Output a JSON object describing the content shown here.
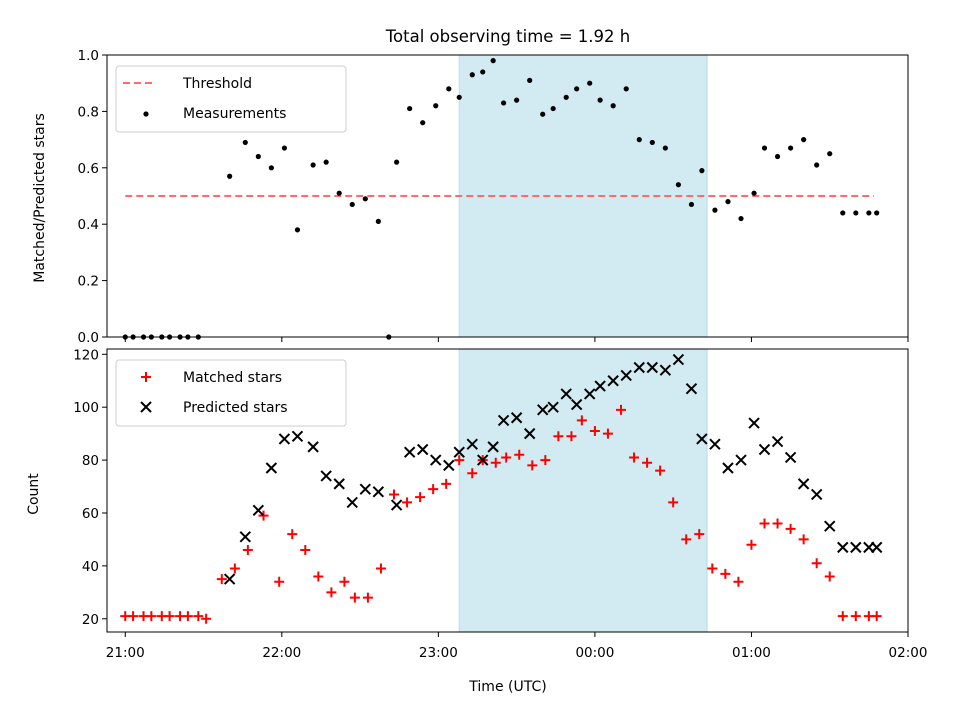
{
  "chart_data": [
    {
      "type": "scatter",
      "title": "Total observing time = 1.92 h",
      "xlabel": "",
      "ylabel": "Matched/Predicted stars",
      "ylim": [
        0.0,
        1.0
      ],
      "yticks": [
        0.0,
        0.2,
        0.4,
        0.6,
        0.8,
        1.0
      ],
      "ytick_labels": [
        "0.0",
        "0.2",
        "0.4",
        "0.6",
        "0.8",
        "1.0"
      ],
      "xlim": [
        "20:53",
        "02:00"
      ],
      "xticks": [
        "21:00",
        "22:00",
        "23:00",
        "00:00",
        "01:00",
        "02:00"
      ],
      "shaded_span": [
        "23:08",
        "00:43"
      ],
      "shaded_color": "#add8e6",
      "legend_position": "upper left",
      "series": [
        {
          "name": "Threshold",
          "style": "dashed-line",
          "color": "#ff6b6b",
          "x": [
            "21:00",
            "01:47"
          ],
          "y": [
            0.5,
            0.5
          ]
        },
        {
          "name": "Measurements",
          "style": "dot",
          "color": "#000000",
          "x": [
            "21:00",
            "21:03",
            "21:07",
            "21:10",
            "21:14",
            "21:17",
            "21:21",
            "21:24",
            "21:28",
            "21:40",
            "21:46",
            "21:51",
            "21:56",
            "22:01",
            "22:06",
            "22:12",
            "22:17",
            "22:22",
            "22:27",
            "22:32",
            "22:37",
            "22:41",
            "22:44",
            "22:49",
            "22:54",
            "22:59",
            "23:04",
            "23:08",
            "23:13",
            "23:17",
            "23:21",
            "23:25",
            "23:30",
            "23:35",
            "23:40",
            "23:44",
            "23:49",
            "23:53",
            "23:58",
            "00:02",
            "00:07",
            "00:12",
            "00:17",
            "00:22",
            "00:27",
            "00:32",
            "00:37",
            "00:41",
            "00:46",
            "00:51",
            "00:56",
            "01:01",
            "01:05",
            "01:10",
            "01:15",
            "01:20",
            "01:25",
            "01:30",
            "01:35",
            "01:40",
            "01:45",
            "01:48"
          ],
          "y": [
            0,
            0,
            0,
            0,
            0,
            0,
            0,
            0,
            0,
            0.57,
            0.69,
            0.64,
            0.6,
            0.67,
            0.38,
            0.61,
            0.62,
            0.51,
            0.47,
            0.49,
            0.41,
            0.0,
            0.62,
            0.81,
            0.76,
            0.82,
            0.88,
            0.85,
            0.93,
            0.94,
            0.98,
            0.83,
            0.84,
            0.91,
            0.79,
            0.81,
            0.85,
            0.88,
            0.9,
            0.84,
            0.82,
            0.88,
            0.7,
            0.69,
            0.67,
            0.54,
            0.47,
            0.59,
            0.45,
            0.48,
            0.42,
            0.51,
            0.67,
            0.64,
            0.67,
            0.7,
            0.61,
            0.65,
            0.44,
            0.44,
            0.44,
            0.44
          ]
        }
      ]
    },
    {
      "type": "scatter",
      "title": "",
      "xlabel": "Time (UTC)",
      "ylabel": "Count",
      "ylim": [
        15,
        122
      ],
      "yticks": [
        20,
        40,
        60,
        80,
        100,
        120
      ],
      "ytick_labels": [
        "20",
        "40",
        "60",
        "80",
        "100",
        "120"
      ],
      "xlim": [
        "20:53",
        "02:00"
      ],
      "xticks": [
        "21:00",
        "22:00",
        "23:00",
        "00:00",
        "01:00",
        "02:00"
      ],
      "xtick_labels": [
        "21:00",
        "22:00",
        "23:00",
        "00:00",
        "01:00",
        "02:00"
      ],
      "shaded_span": [
        "23:08",
        "00:43"
      ],
      "shaded_color": "#add8e6",
      "legend_position": "upper left",
      "series": [
        {
          "name": "Matched stars",
          "marker": "plus",
          "color": "#ff0000",
          "x": [
            "21:00",
            "21:03",
            "21:07",
            "21:10",
            "21:14",
            "21:17",
            "21:21",
            "21:24",
            "21:28",
            "21:31",
            "21:37",
            "21:42",
            "21:47",
            "21:53",
            "21:59",
            "22:04",
            "22:09",
            "22:14",
            "22:19",
            "22:24",
            "22:28",
            "22:33",
            "22:38",
            "22:43",
            "22:48",
            "22:53",
            "22:58",
            "23:03",
            "23:08",
            "23:13",
            "23:17",
            "23:22",
            "23:26",
            "23:31",
            "23:36",
            "23:41",
            "23:46",
            "23:51",
            "23:55",
            "00:00",
            "00:05",
            "00:10",
            "00:15",
            "00:20",
            "00:25",
            "00:30",
            "00:35",
            "00:40",
            "00:45",
            "00:50",
            "00:55",
            "01:00",
            "01:05",
            "01:10",
            "01:15",
            "01:20",
            "01:25",
            "01:30",
            "01:35",
            "01:40",
            "01:45",
            "01:48"
          ],
          "y": [
            21,
            21,
            21,
            21,
            21,
            21,
            21,
            21,
            21,
            20,
            35,
            39,
            46,
            59,
            34,
            52,
            46,
            36,
            30,
            34,
            28,
            28,
            39,
            67,
            64,
            66,
            69,
            71,
            80,
            75,
            80,
            79,
            81,
            82,
            78,
            80,
            89,
            89,
            95,
            91,
            90,
            99,
            81,
            79,
            76,
            64,
            50,
            52,
            39,
            37,
            34,
            48,
            56,
            56,
            54,
            50,
            41,
            36,
            21,
            21,
            21,
            21
          ]
        },
        {
          "name": "Predicted stars",
          "marker": "x",
          "color": "#000000",
          "x": [
            "21:40",
            "21:46",
            "21:51",
            "21:56",
            "22:01",
            "22:06",
            "22:12",
            "22:17",
            "22:22",
            "22:27",
            "22:32",
            "22:37",
            "22:44",
            "22:49",
            "22:54",
            "22:59",
            "23:04",
            "23:08",
            "23:13",
            "23:17",
            "23:21",
            "23:25",
            "23:30",
            "23:35",
            "23:40",
            "23:44",
            "23:49",
            "23:53",
            "23:58",
            "00:02",
            "00:07",
            "00:12",
            "00:17",
            "00:22",
            "00:27",
            "00:32",
            "00:37",
            "00:41",
            "00:46",
            "00:51",
            "00:56",
            "01:01",
            "01:05",
            "01:10",
            "01:15",
            "01:20",
            "01:25",
            "01:30",
            "01:35",
            "01:40",
            "01:45",
            "01:48"
          ],
          "y": [
            35,
            51,
            61,
            77,
            88,
            89,
            85,
            74,
            71,
            64,
            69,
            68,
            63,
            83,
            84,
            80,
            78,
            83,
            86,
            80,
            85,
            95,
            96,
            90,
            99,
            100,
            105,
            101,
            105,
            108,
            110,
            112,
            115,
            115,
            114,
            118,
            107,
            88,
            86,
            77,
            80,
            94,
            84,
            87,
            81,
            71,
            67,
            55,
            47,
            47,
            47,
            47
          ]
        }
      ]
    }
  ]
}
